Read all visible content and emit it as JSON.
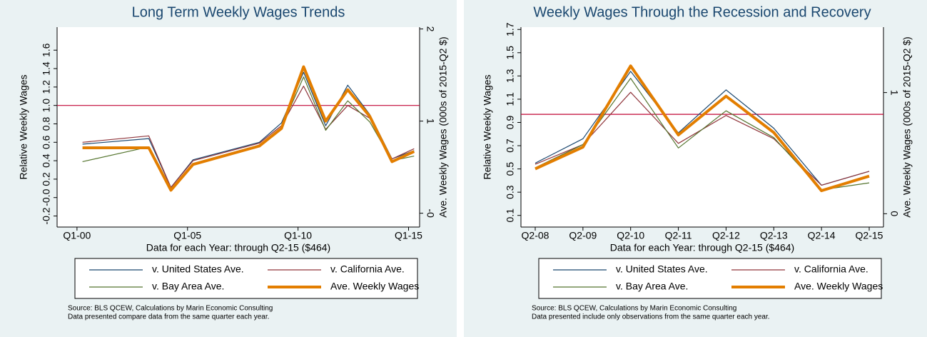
{
  "chart_data": [
    {
      "type": "line",
      "title": "Long Term Weekly Wages Trends",
      "x_label": "Data for each Year: through Q2-15 ($464)",
      "y_label": "Relative Weekly Wages",
      "y2_label": "Ave. Weekly Wages (000s of 2015-Q2 $)",
      "x": [
        2000.25,
        2003.25,
        2004.25,
        2005.25,
        2008.25,
        2009.25,
        2010.25,
        2011.25,
        2012.25,
        2013.25,
        2014.25,
        2015.25
      ],
      "xlim": [
        1999.1,
        2015.5
      ],
      "xticks": [
        {
          "value": 2000,
          "label": "Q1-00"
        },
        {
          "value": 2005,
          "label": "Q1-05"
        },
        {
          "value": 2010,
          "label": "Q1-10"
        },
        {
          "value": 2015,
          "label": "Q1-15"
        }
      ],
      "ylim": [
        -0.32,
        1.85
      ],
      "yticks": [
        -0.2,
        {
          "value": 0,
          "label": "-0.0"
        },
        0.2,
        0.4,
        0.6,
        0.8,
        {
          "value": 1,
          "label": "1.0"
        },
        1.2,
        1.4,
        1.6
      ],
      "y2lim": [
        -0.15,
        2.02
      ],
      "y2ticks": [
        {
          "value": 0,
          "label": "-0"
        },
        1,
        2
      ],
      "reference_line": 1.0,
      "reference_color": "#c10534",
      "series": [
        {
          "name": "v. United States Ave.",
          "color": "#1a476f",
          "values": [
            0.58,
            0.64,
            0.11,
            0.41,
            0.6,
            0.81,
            1.36,
            0.78,
            1.22,
            0.9,
            0.42,
            0.51
          ]
        },
        {
          "name": "v. California Ave.",
          "color": "#90353b",
          "values": [
            0.6,
            0.67,
            0.11,
            0.4,
            0.59,
            0.78,
            1.21,
            0.74,
            1.0,
            0.86,
            0.42,
            0.53
          ]
        },
        {
          "name": "v. Bay Area Ave.",
          "color": "#55752f",
          "values": [
            0.39,
            0.55,
            0.09,
            0.37,
            0.57,
            0.76,
            1.31,
            0.73,
            1.05,
            0.82,
            0.4,
            0.45
          ]
        },
        {
          "name": "Ave. Weekly Wages",
          "color": "#e37e00",
          "axis": "y2",
          "values": [
            0.71,
            0.71,
            0.25,
            0.53,
            0.73,
            0.92,
            1.59,
            1.0,
            1.34,
            1.05,
            0.56,
            0.67
          ]
        }
      ],
      "notes": [
        "Source: BLS QCEW, Calculations by Marin Economic Consulting",
        "Data presented compare data from the same quarter each year."
      ]
    },
    {
      "type": "line",
      "title": "Weekly Wages Through the Recession and Recovery",
      "x_label": "Data for each Year: through Q2-15 ($464)",
      "y_label": "Relative Weekly Wages",
      "y2_label": "Ave. Weekly Wages (000s of 2015-Q2 $)",
      "categories": [
        "Q2-08",
        "Q2-09",
        "Q2-10",
        "Q2-11",
        "Q2-12",
        "Q2-13",
        "Q2-14",
        "Q2-15"
      ],
      "ylim": [
        0.0,
        1.72
      ],
      "yticks": [
        0.1,
        0.3,
        0.5,
        0.7,
        0.9,
        1.1,
        1.3,
        1.5,
        1.7
      ],
      "y2lim": [
        -0.11,
        1.54
      ],
      "y2ticks": [
        0,
        1
      ],
      "reference_line": 0.97,
      "reference_color": "#c10534",
      "series": [
        {
          "name": "v. United States Ave.",
          "color": "#1a476f",
          "values": [
            0.55,
            0.76,
            1.34,
            0.81,
            1.18,
            0.85,
            0.36,
            0.48
          ]
        },
        {
          "name": "v. California Ave.",
          "color": "#90353b",
          "values": [
            0.54,
            0.71,
            1.16,
            0.72,
            0.96,
            0.76,
            0.36,
            0.48
          ]
        },
        {
          "name": "v. Bay Area Ave.",
          "color": "#55752f",
          "values": [
            0.51,
            0.71,
            1.28,
            0.68,
            1.0,
            0.77,
            0.32,
            0.38
          ]
        },
        {
          "name": "Ave. Weekly Wages",
          "color": "#e37e00",
          "axis": "y2",
          "values": [
            0.37,
            0.55,
            1.22,
            0.65,
            0.97,
            0.67,
            0.19,
            0.31
          ]
        }
      ],
      "notes": [
        "Source: BLS QCEW, Calculations by Marin Economic Consulting",
        "Data presented include only observations from the same quarter each year."
      ]
    }
  ]
}
